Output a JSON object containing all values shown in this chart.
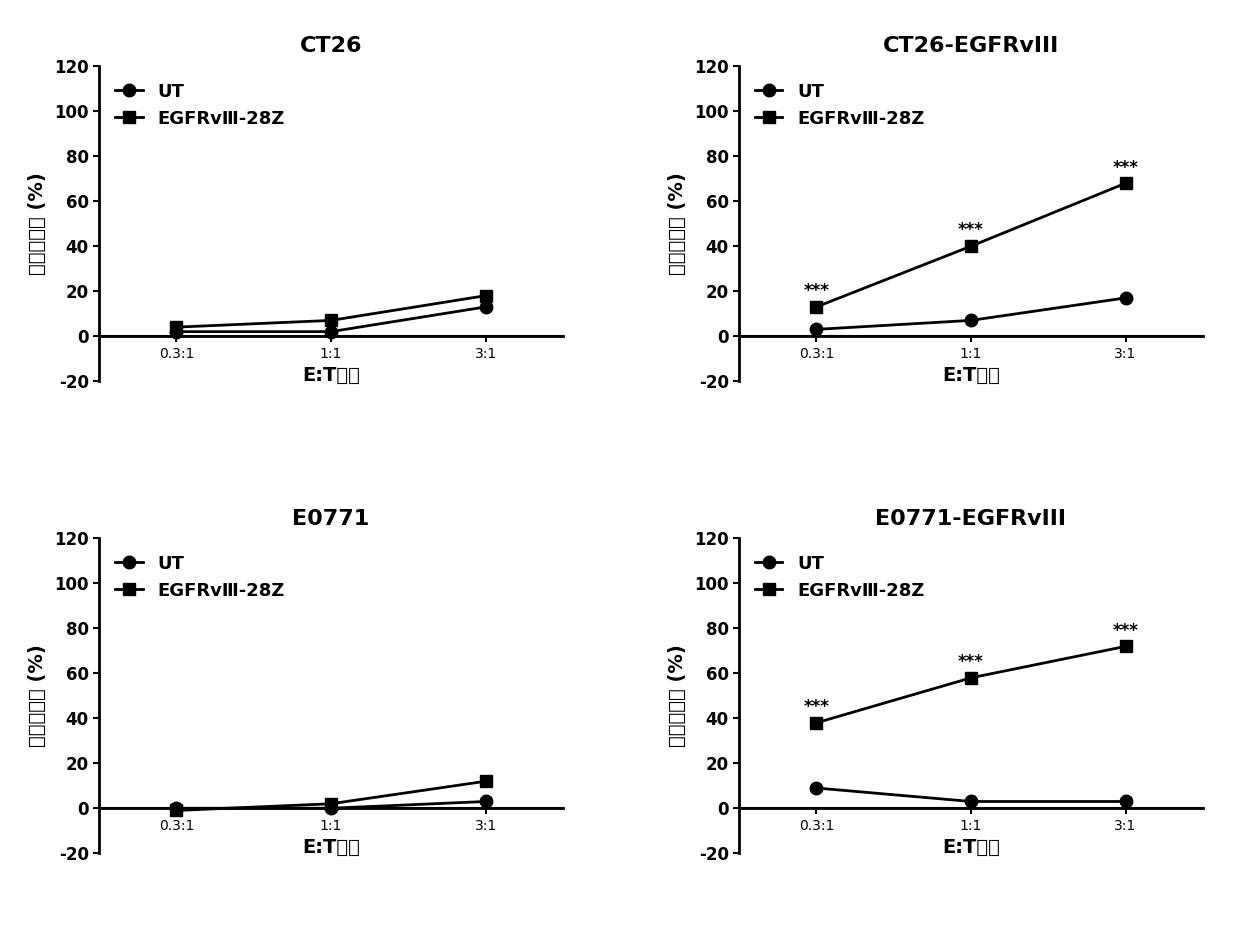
{
  "subplots": [
    {
      "title": "CT26",
      "ut": [
        2,
        2,
        13
      ],
      "egfr": [
        4,
        7,
        18
      ],
      "stars": [],
      "ylim": [
        -20,
        120
      ],
      "yticks": [
        -20,
        0,
        20,
        40,
        60,
        80,
        100,
        120
      ]
    },
    {
      "title": "CT26-EGFRvIII",
      "ut": [
        3,
        7,
        17
      ],
      "egfr": [
        13,
        40,
        68
      ],
      "stars": [
        "***",
        "***",
        "***"
      ],
      "ylim": [
        -20,
        120
      ],
      "yticks": [
        -20,
        0,
        20,
        40,
        60,
        80,
        100,
        120
      ]
    },
    {
      "title": "E0771",
      "ut": [
        0,
        0,
        3
      ],
      "egfr": [
        -1,
        2,
        12
      ],
      "stars": [],
      "ylim": [
        -20,
        120
      ],
      "yticks": [
        -20,
        0,
        20,
        40,
        60,
        80,
        100,
        120
      ]
    },
    {
      "title": "E0771-EGFRvIII",
      "ut": [
        9,
        3,
        3
      ],
      "egfr": [
        38,
        58,
        72
      ],
      "stars": [
        "***",
        "***",
        "***"
      ],
      "ylim": [
        -20,
        120
      ],
      "yticks": [
        -20,
        0,
        20,
        40,
        60,
        80,
        100,
        120
      ]
    }
  ],
  "x_positions": [
    0,
    1,
    2
  ],
  "x_labels": [
    "0.3:1",
    "1:1",
    "3:1"
  ],
  "xlabel": "E:T比例",
  "ylabel": "特异性杀伤 (%)",
  "legend_ut": "UT",
  "legend_egfr": "EGFRvⅢ-28Z",
  "line_color": "#000000",
  "bg_color": "#ffffff",
  "title_fontsize": 16,
  "label_fontsize": 14,
  "tick_fontsize": 12,
  "legend_fontsize": 13,
  "star_fontsize": 12,
  "linewidth": 2.0,
  "markersize": 9
}
